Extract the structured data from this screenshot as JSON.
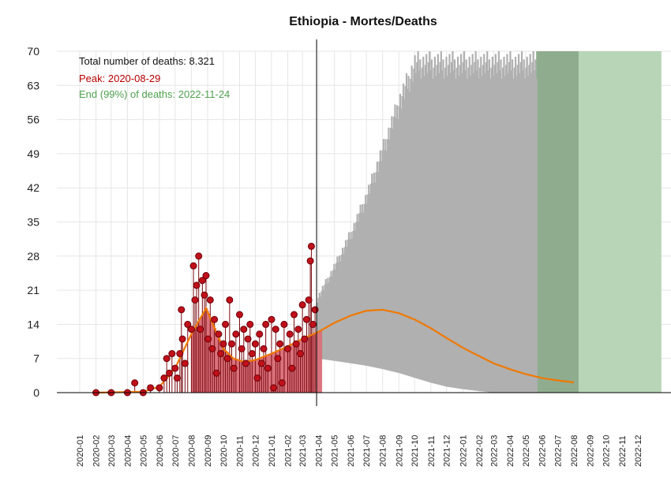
{
  "chart_data": {
    "type": "bar",
    "title": "Ethiopia - Mortes/Deaths",
    "xlabel": "",
    "ylabel": "",
    "ylim": [
      0,
      70
    ],
    "yticks": [
      0,
      7,
      14,
      21,
      28,
      35,
      42,
      49,
      56,
      63,
      70
    ],
    "xticks": [
      "2020-01",
      "2020-02",
      "2020-03",
      "2020-04",
      "2020-05",
      "2020-06",
      "2020-07",
      "2020-08",
      "2020-09",
      "2020-10",
      "2020-11",
      "2020-12",
      "2021-01",
      "2021-02",
      "2021-03",
      "2021-04",
      "2021-05",
      "2021-06",
      "2021-07",
      "2021-08",
      "2021-09",
      "2021-10",
      "2021-11",
      "2021-12",
      "2022-01",
      "2022-02",
      "2022-03",
      "2022-04",
      "2022-05",
      "2022-06",
      "2022-07",
      "2022-08",
      "2022-09",
      "2022-10",
      "2022-11",
      "2022-12"
    ],
    "grid": true,
    "legend": "none",
    "annotations": {
      "total": "Total number of deaths: 8.321",
      "peak": "Peak: 2020-08-29",
      "end": "End (99%) of deaths: 2022-11-24"
    },
    "today": "2021-03-28",
    "observed_deaths": [
      {
        "date": "2020-02-01",
        "value": 0
      },
      {
        "date": "2020-03-01",
        "value": 0
      },
      {
        "date": "2020-04-01",
        "value": 0
      },
      {
        "date": "2020-04-15",
        "value": 2
      },
      {
        "date": "2020-05-01",
        "value": 0
      },
      {
        "date": "2020-05-15",
        "value": 1
      },
      {
        "date": "2020-06-01",
        "value": 1
      },
      {
        "date": "2020-06-10",
        "value": 3
      },
      {
        "date": "2020-06-15",
        "value": 7
      },
      {
        "date": "2020-06-20",
        "value": 4
      },
      {
        "date": "2020-06-25",
        "value": 8
      },
      {
        "date": "2020-07-01",
        "value": 5
      },
      {
        "date": "2020-07-05",
        "value": 3
      },
      {
        "date": "2020-07-10",
        "value": 8
      },
      {
        "date": "2020-07-13",
        "value": 17
      },
      {
        "date": "2020-07-15",
        "value": 11
      },
      {
        "date": "2020-07-20",
        "value": 6
      },
      {
        "date": "2020-07-25",
        "value": 14
      },
      {
        "date": "2020-08-01",
        "value": 13
      },
      {
        "date": "2020-08-05",
        "value": 26
      },
      {
        "date": "2020-08-08",
        "value": 19
      },
      {
        "date": "2020-08-11",
        "value": 22
      },
      {
        "date": "2020-08-15",
        "value": 28
      },
      {
        "date": "2020-08-18",
        "value": 13
      },
      {
        "date": "2020-08-22",
        "value": 23
      },
      {
        "date": "2020-08-26",
        "value": 20
      },
      {
        "date": "2020-08-29",
        "value": 24
      },
      {
        "date": "2020-09-02",
        "value": 11
      },
      {
        "date": "2020-09-06",
        "value": 19
      },
      {
        "date": "2020-09-10",
        "value": 9
      },
      {
        "date": "2020-09-14",
        "value": 15
      },
      {
        "date": "2020-09-18",
        "value": 4
      },
      {
        "date": "2020-09-22",
        "value": 12
      },
      {
        "date": "2020-09-26",
        "value": 8
      },
      {
        "date": "2020-10-01",
        "value": 10
      },
      {
        "date": "2020-10-05",
        "value": 14
      },
      {
        "date": "2020-10-09",
        "value": 7
      },
      {
        "date": "2020-10-13",
        "value": 19
      },
      {
        "date": "2020-10-17",
        "value": 10
      },
      {
        "date": "2020-10-21",
        "value": 5
      },
      {
        "date": "2020-10-25",
        "value": 12
      },
      {
        "date": "2020-11-01",
        "value": 16
      },
      {
        "date": "2020-11-05",
        "value": 9
      },
      {
        "date": "2020-11-09",
        "value": 13
      },
      {
        "date": "2020-11-13",
        "value": 6
      },
      {
        "date": "2020-11-17",
        "value": 11
      },
      {
        "date": "2020-11-21",
        "value": 14
      },
      {
        "date": "2020-11-25",
        "value": 8
      },
      {
        "date": "2020-12-01",
        "value": 10
      },
      {
        "date": "2020-12-05",
        "value": 3
      },
      {
        "date": "2020-12-09",
        "value": 12
      },
      {
        "date": "2020-12-13",
        "value": 6
      },
      {
        "date": "2020-12-17",
        "value": 9
      },
      {
        "date": "2020-12-21",
        "value": 14
      },
      {
        "date": "2020-12-25",
        "value": 5
      },
      {
        "date": "2021-01-01",
        "value": 15
      },
      {
        "date": "2021-01-05",
        "value": 1
      },
      {
        "date": "2021-01-09",
        "value": 13
      },
      {
        "date": "2021-01-13",
        "value": 7
      },
      {
        "date": "2021-01-17",
        "value": 10
      },
      {
        "date": "2021-01-21",
        "value": 2
      },
      {
        "date": "2021-01-25",
        "value": 14
      },
      {
        "date": "2021-02-01",
        "value": 9
      },
      {
        "date": "2021-02-05",
        "value": 12
      },
      {
        "date": "2021-02-09",
        "value": 5
      },
      {
        "date": "2021-02-13",
        "value": 16
      },
      {
        "date": "2021-02-17",
        "value": 10
      },
      {
        "date": "2021-02-21",
        "value": 13
      },
      {
        "date": "2021-02-25",
        "value": 8
      },
      {
        "date": "2021-03-01",
        "value": 18
      },
      {
        "date": "2021-03-05",
        "value": 11
      },
      {
        "date": "2021-03-09",
        "value": 15
      },
      {
        "date": "2021-03-13",
        "value": 19
      },
      {
        "date": "2021-03-16",
        "value": 27
      },
      {
        "date": "2021-03-18",
        "value": 30
      },
      {
        "date": "2021-03-21",
        "value": 14
      },
      {
        "date": "2021-03-25",
        "value": 17
      }
    ],
    "fitted_curve": [
      {
        "date": "2020-02-01",
        "value": 0
      },
      {
        "date": "2020-05-01",
        "value": 0.2
      },
      {
        "date": "2020-06-01",
        "value": 1.2
      },
      {
        "date": "2020-07-01",
        "value": 5
      },
      {
        "date": "2020-08-01",
        "value": 12
      },
      {
        "date": "2020-08-29",
        "value": 17.3
      },
      {
        "date": "2020-09-15",
        "value": 13
      },
      {
        "date": "2020-10-01",
        "value": 9
      },
      {
        "date": "2020-10-20",
        "value": 7
      },
      {
        "date": "2020-11-10",
        "value": 6.3
      },
      {
        "date": "2020-12-01",
        "value": 6.7
      },
      {
        "date": "2021-01-01",
        "value": 8
      },
      {
        "date": "2021-02-01",
        "value": 9.5
      },
      {
        "date": "2021-03-01",
        "value": 11
      },
      {
        "date": "2021-04-01",
        "value": 12.5
      },
      {
        "date": "2021-05-01",
        "value": 14.3
      },
      {
        "date": "2021-06-01",
        "value": 15.8
      },
      {
        "date": "2021-07-01",
        "value": 16.8
      },
      {
        "date": "2021-08-01",
        "value": 17
      },
      {
        "date": "2021-09-01",
        "value": 16.3
      },
      {
        "date": "2021-10-01",
        "value": 15
      },
      {
        "date": "2021-11-01",
        "value": 13.2
      },
      {
        "date": "2021-12-01",
        "value": 11.2
      },
      {
        "date": "2022-01-01",
        "value": 9.2
      },
      {
        "date": "2022-02-01",
        "value": 7.5
      },
      {
        "date": "2022-03-01",
        "value": 6
      },
      {
        "date": "2022-04-01",
        "value": 4.8
      },
      {
        "date": "2022-05-01",
        "value": 3.8
      },
      {
        "date": "2022-06-01",
        "value": 3
      },
      {
        "date": "2022-07-01",
        "value": 2.5
      },
      {
        "date": "2022-08-01",
        "value": 2.1
      }
    ],
    "forecast_band": [
      {
        "date": "2021-03-28",
        "low": 7,
        "high": 20
      },
      {
        "date": "2021-05-01",
        "low": 6.5,
        "high": 27
      },
      {
        "date": "2021-06-01",
        "low": 6,
        "high": 34
      },
      {
        "date": "2021-07-01",
        "low": 5.5,
        "high": 42
      },
      {
        "date": "2021-08-01",
        "low": 4.8,
        "high": 52
      },
      {
        "date": "2021-09-01",
        "low": 4,
        "high": 62
      },
      {
        "date": "2021-10-01",
        "low": 3,
        "high": 70
      },
      {
        "date": "2021-11-01",
        "low": 2,
        "high": 70
      },
      {
        "date": "2021-12-01",
        "low": 1.2,
        "high": 70
      },
      {
        "date": "2022-01-01",
        "low": 0.7,
        "high": 70
      },
      {
        "date": "2022-02-01",
        "low": 0.3,
        "high": 70
      },
      {
        "date": "2022-03-01",
        "low": 0,
        "high": 70
      },
      {
        "date": "2022-05-21",
        "low": 0,
        "high": 70
      }
    ],
    "zones": [
      {
        "start": "2022-05-21",
        "end": "2022-08-10",
        "color": "#8fac8f"
      },
      {
        "start": "2022-08-10",
        "end": "2023-01-15",
        "color": "#b8d5b8"
      }
    ],
    "colors": {
      "bars": "#d9707a",
      "points": "#c0101a",
      "curve": "#f07800",
      "band": "#b0b0b0",
      "today_line": "#000000",
      "peak_text": "#b80000",
      "end_text": "#4fa04f",
      "total_text": "#111111"
    }
  }
}
